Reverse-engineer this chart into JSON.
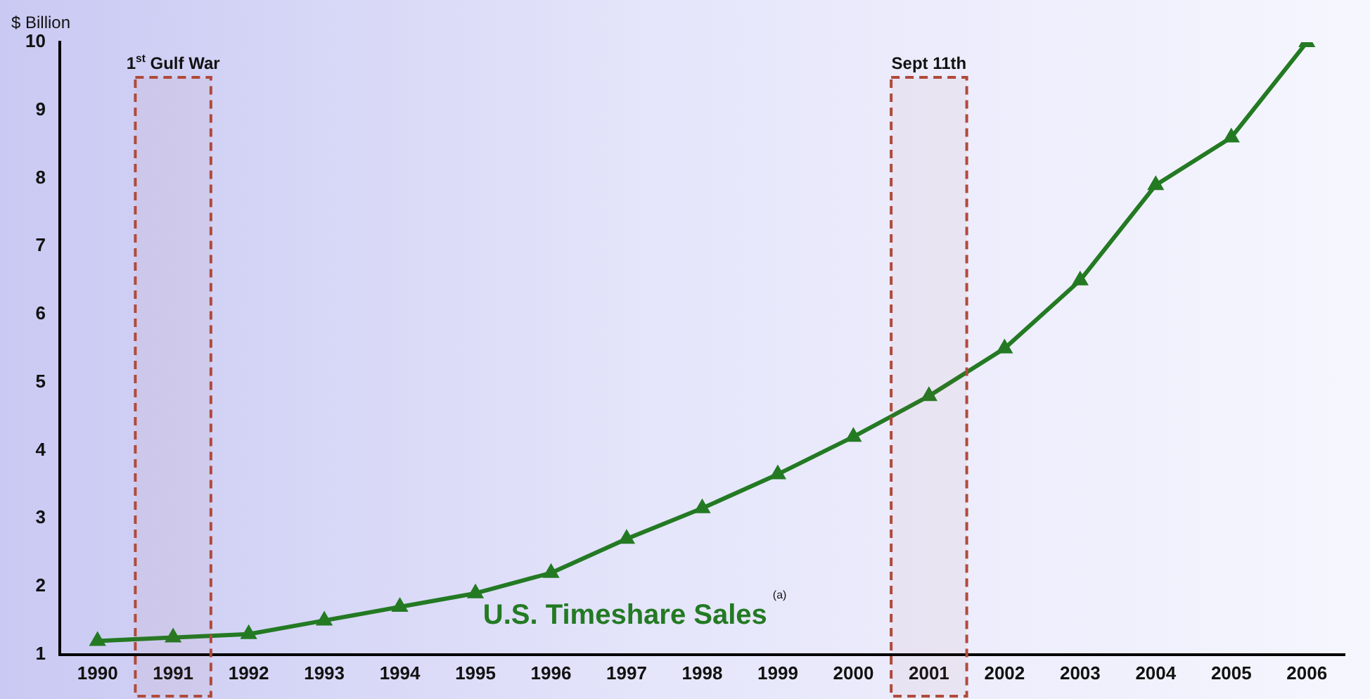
{
  "chart_data": {
    "type": "line",
    "title": "U.S. Timeshare Sales",
    "ylabel": "$ Billion",
    "annotations": [
      "(a)"
    ],
    "categories": [
      "1990",
      "1991",
      "1992",
      "1993",
      "1994",
      "1995",
      "1996",
      "1997",
      "1998",
      "1999",
      "2000",
      "2001",
      "2002",
      "2003",
      "2004",
      "2005",
      "2006"
    ],
    "series": [
      {
        "color": "#237a23",
        "values": [
          1.2,
          1.25,
          1.3,
          1.5,
          1.7,
          1.9,
          2.2,
          2.7,
          3.15,
          3.65,
          4.2,
          4.8,
          5.5,
          6.5,
          7.9,
          8.6,
          10
        ]
      }
    ],
    "ylim": [
      1,
      10
    ],
    "yticks": [
      1,
      2,
      3,
      4,
      5,
      6,
      7,
      8,
      9,
      10
    ],
    "bands": [
      {
        "axis": "x",
        "from": "1991",
        "to": "1991",
        "label": "1$^{st}$ Gulf War",
        "color": "#b04a3a"
      },
      {
        "axis": "x",
        "from": "2001",
        "to": "2001",
        "label": "Sept 11th",
        "color": "#b04a3a"
      }
    ],
    "marker": "triangle",
    "line_style": "solid",
    "grid": false,
    "legend": false
  }
}
